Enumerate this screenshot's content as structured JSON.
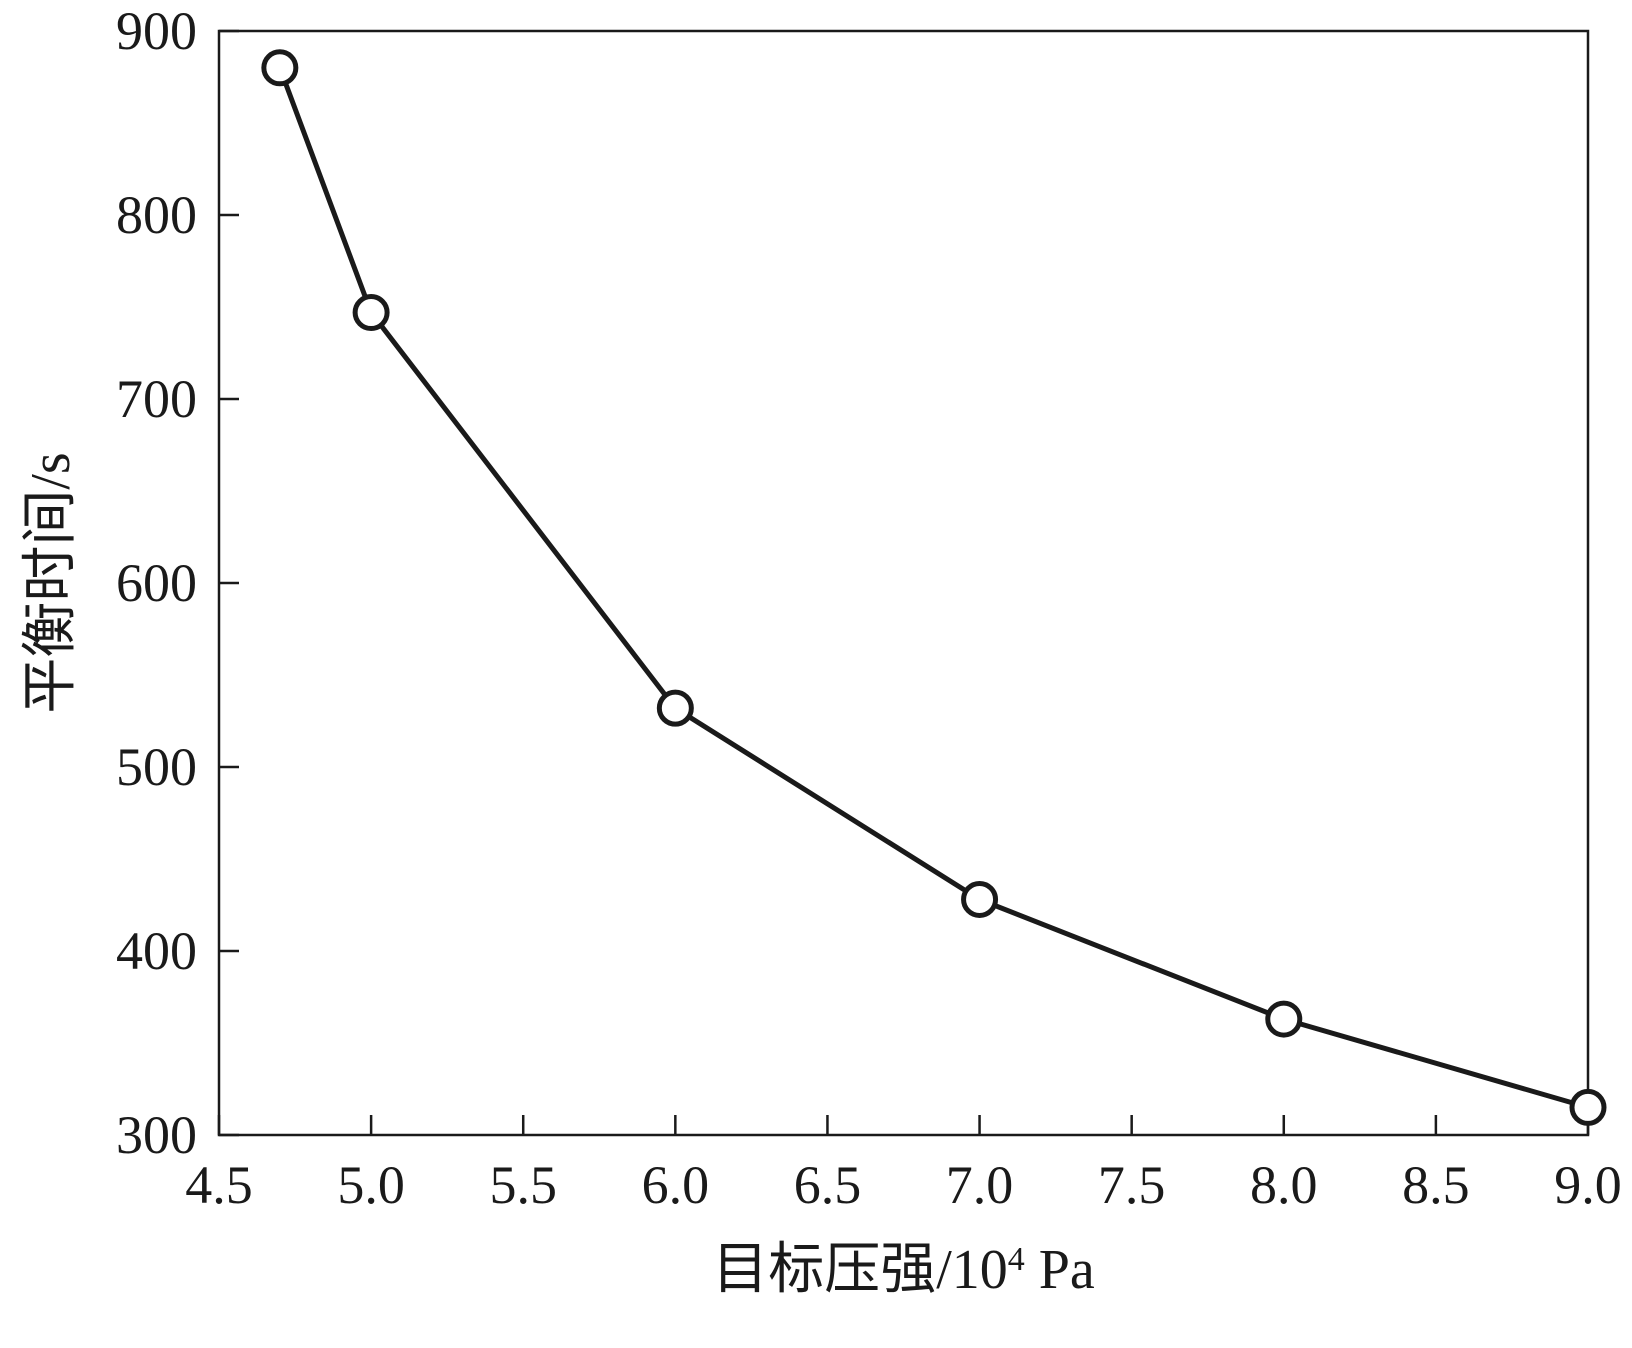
{
  "chart_data": {
    "type": "line",
    "title": "",
    "xlabel": {
      "main": "目标压强/10",
      "sup": "4",
      "unit": " Pa"
    },
    "ylabel": "平衡时间/s",
    "xlim": [
      4.5,
      9.0
    ],
    "ylim": [
      300,
      900
    ],
    "x_ticks": [
      4.5,
      5.0,
      5.5,
      6.0,
      6.5,
      7.0,
      7.5,
      8.0,
      8.5,
      9.0
    ],
    "x_tick_labels": [
      "4.5",
      "5.0",
      "5.5",
      "6.0",
      "6.5",
      "7.0",
      "7.5",
      "8.0",
      "8.5",
      "9.0"
    ],
    "y_ticks": [
      300,
      400,
      500,
      600,
      700,
      800,
      900
    ],
    "y_tick_labels": [
      "300",
      "400",
      "500",
      "600",
      "700",
      "800",
      "900"
    ],
    "grid": false,
    "legend": "none",
    "series": [
      {
        "marker": "open-circle",
        "color": "#1a1a1a",
        "points": [
          {
            "x": 4.7,
            "y": 880
          },
          {
            "x": 5.0,
            "y": 747
          },
          {
            "x": 6.0,
            "y": 532
          },
          {
            "x": 7.0,
            "y": 428
          },
          {
            "x": 8.0,
            "y": 363
          },
          {
            "x": 9.0,
            "y": 315
          }
        ]
      }
    ]
  }
}
